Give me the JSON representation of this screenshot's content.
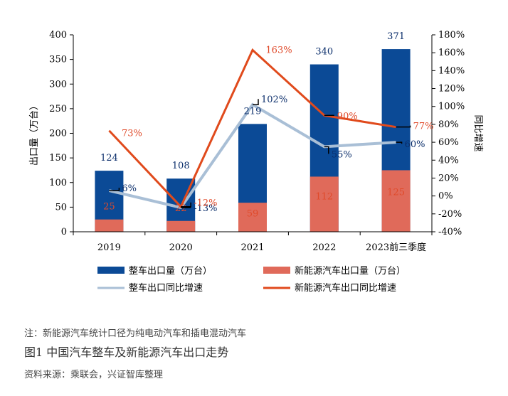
{
  "chart_data": {
    "type": "bar",
    "categories": [
      "2019",
      "2020",
      "2021",
      "2022",
      "2023前三季度"
    ],
    "ylabel": "出口量（万台）",
    "y2label": "同比增速",
    "ylim": [
      0,
      400
    ],
    "y2lim": [
      -40,
      180
    ],
    "y_ticks": [
      "0",
      "50",
      "100",
      "150",
      "200",
      "250",
      "300",
      "350",
      "400"
    ],
    "y2_ticks": [
      "-40%",
      "-20%",
      "0%",
      "20%",
      "40%",
      "60%",
      "80%",
      "100%",
      "120%",
      "140%",
      "160%",
      "180%"
    ],
    "series": [
      {
        "name": "整车出口量（万台）",
        "kind": "bar",
        "color": "#0b4a96",
        "values": [
          124,
          108,
          219,
          340,
          371
        ],
        "labels": [
          "124",
          "108",
          "219",
          "340",
          "371"
        ]
      },
      {
        "name": "新能源汽车出口量（万台）",
        "kind": "bar",
        "color": "#e06a5a",
        "values": [
          25,
          22,
          59,
          112,
          125
        ],
        "labels": [
          "25",
          "22",
          "59",
          "112",
          "125"
        ]
      },
      {
        "name": "整车出口同比增速",
        "kind": "line",
        "axis": "y2",
        "color": "#a9bfd6",
        "values": [
          6,
          -13,
          102,
          55,
          60
        ],
        "labels": [
          "6%",
          "-13%",
          "102%",
          "55%",
          "60%"
        ]
      },
      {
        "name": "新能源汽车出口同比增速",
        "kind": "line",
        "axis": "y2",
        "color": "#e04a1c",
        "values": [
          73,
          -12,
          163,
          90,
          77
        ],
        "labels": [
          "73%",
          "-12%",
          "163%",
          "90%",
          "77%"
        ]
      }
    ]
  },
  "footer": {
    "note": "注：新能源汽车统计口径为纯电动汽车和插电混动汽车",
    "caption": "图1  中国汽车整车及新能源汽车出口走势",
    "source": "资料来源：乘联会，兴证智库整理"
  }
}
